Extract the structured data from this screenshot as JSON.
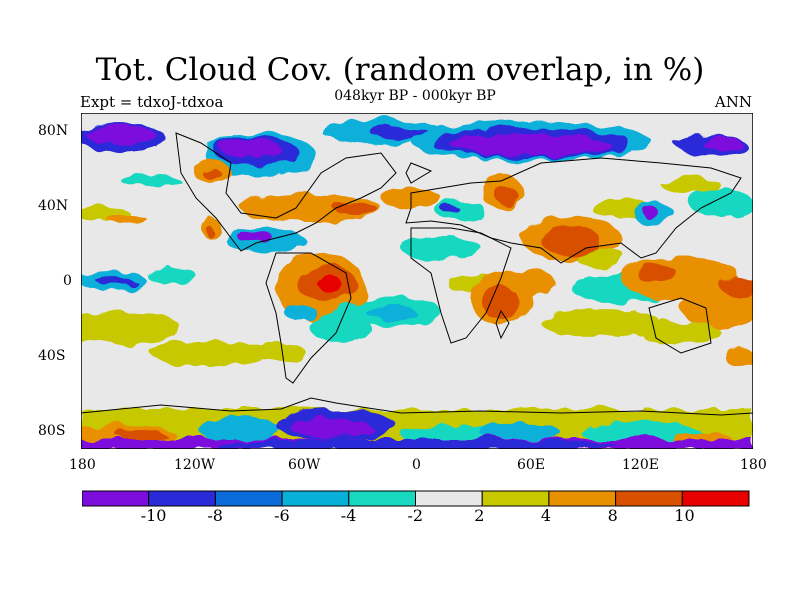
{
  "header": {
    "title": "Tot. Cloud Cov. (random overlap, in %)",
    "subtitle": "048kyr BP - 000kyr BP",
    "left_label": "Expt = tdxoJ-tdxoa",
    "right_label": "ANN"
  },
  "lat_labels": [
    "80N",
    "40N",
    "0",
    "40S",
    "80S"
  ],
  "lon_labels": [
    "180",
    "120W",
    "60W",
    "0",
    "60E",
    "120E",
    "180"
  ],
  "colorbar": {
    "colors": [
      "#7B0CDC",
      "#2A2AD8",
      "#0A6CD8",
      "#08B0D8",
      "#18D8C0",
      "#E8E8E8",
      "#C8C800",
      "#E89000",
      "#D85000",
      "#E80000"
    ],
    "labels": [
      "-10",
      "-8",
      "-6",
      "-4",
      "-2",
      "2",
      "4",
      "8",
      "10"
    ]
  }
}
